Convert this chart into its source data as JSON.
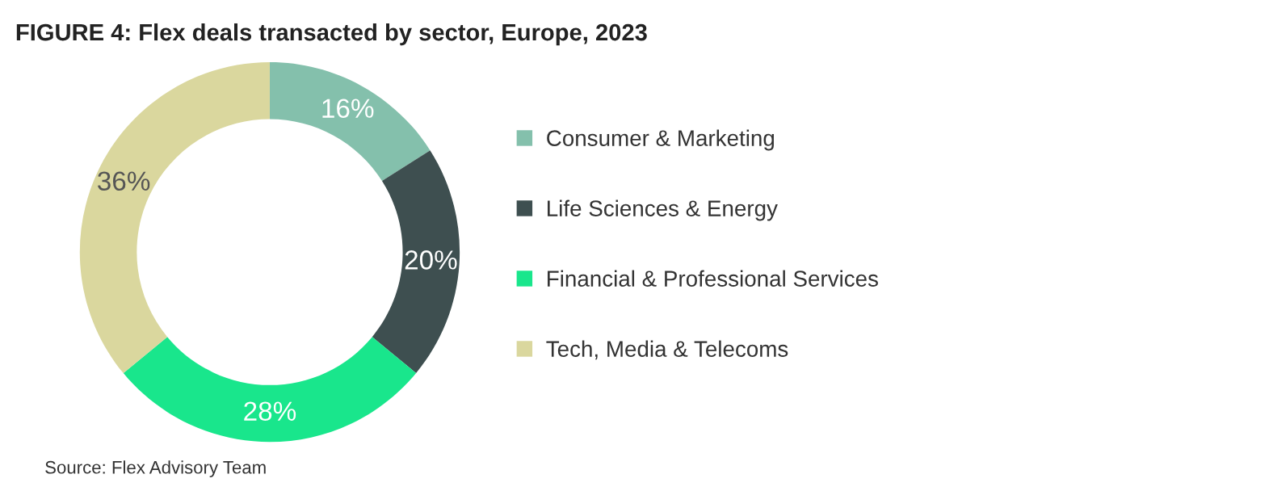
{
  "chart_data": {
    "type": "donut",
    "title": "FIGURE 4: Flex deals transacted by sector, Europe, 2023",
    "categories": [
      "Consumer & Marketing",
      "Life Sciences & Energy",
      "Financial & Professional Services",
      "Tech, Media & Telecoms"
    ],
    "values": [
      16,
      20,
      28,
      36
    ],
    "colors": [
      "#84c0ac",
      "#3e4f50",
      "#19e68c",
      "#dad79e"
    ],
    "value_labels": [
      "16%",
      "20%",
      "28%",
      "36%"
    ],
    "legend": "right",
    "annotations": [
      "Source: Flex Advisory Team"
    ]
  }
}
